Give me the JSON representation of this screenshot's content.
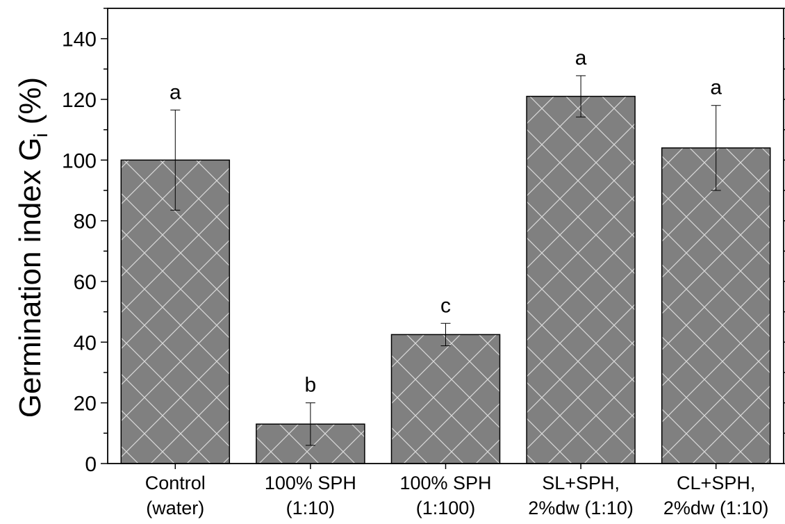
{
  "chart_data": {
    "type": "bar",
    "categories": [
      [
        "Control",
        "(water)"
      ],
      [
        "100% SPH",
        "(1:10)"
      ],
      [
        "100% SPH",
        "(1:100)"
      ],
      [
        "SL+SPH,",
        "2%dw (1:10)"
      ],
      [
        "CL+SPH,",
        "2%dw (1:10)"
      ]
    ],
    "values": [
      100,
      13,
      42.5,
      121,
      104
    ],
    "errors": [
      16.5,
      7,
      3.7,
      6.8,
      14
    ],
    "letters": [
      "a",
      "b",
      "c",
      "a",
      "a"
    ],
    "ylabel": {
      "main": "Germination index G",
      "sub": "i",
      "unit": " (%)"
    },
    "ylim": [
      0,
      150
    ],
    "yticks_major": [
      0,
      20,
      40,
      60,
      80,
      100,
      120,
      140
    ],
    "bar_fill": "#808080",
    "hatch_color": "#d9d9d9",
    "axis_color": "#000000",
    "grid": false
  }
}
